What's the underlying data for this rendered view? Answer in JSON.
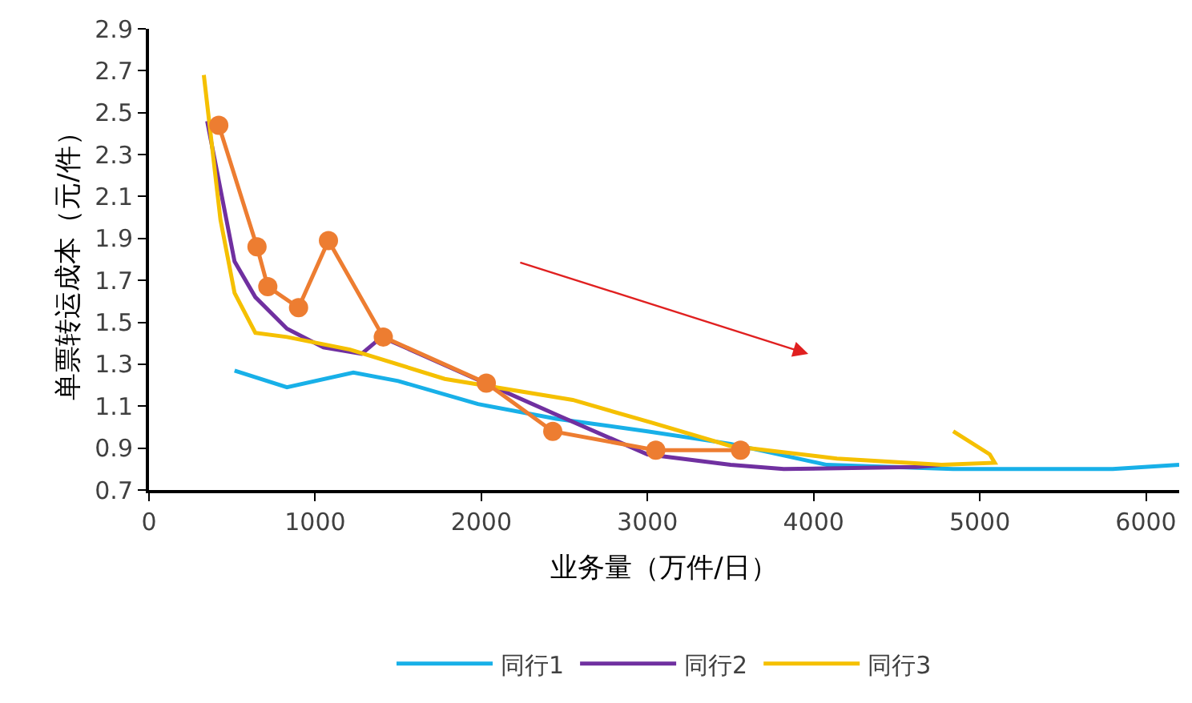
{
  "chart_data": {
    "type": "line",
    "xlabel": "业务量（万件/日）",
    "ylabel": "单票转运成本（元/件）",
    "xlim": [
      0,
      6200
    ],
    "xticks": [
      0,
      1000,
      2000,
      3000,
      4000,
      5000,
      6000
    ],
    "ylim": [
      0.7,
      2.9
    ],
    "yticks": [
      0.7,
      0.9,
      1.1,
      1.3,
      1.5,
      1.7,
      1.9,
      2.1,
      2.3,
      2.5,
      2.7,
      2.9
    ],
    "grid": false,
    "legend": "bottom",
    "line_style": "solid",
    "series": [
      {
        "name": "同行1",
        "color": "#18b0e8",
        "marker": "none",
        "x": [
          515,
          830,
          1230,
          1500,
          1980,
          2450,
          3000,
          3500,
          4080,
          4840,
          5800,
          6200
        ],
        "values": [
          1.27,
          1.19,
          1.26,
          1.22,
          1.11,
          1.04,
          0.98,
          0.92,
          0.82,
          0.8,
          0.8,
          0.82
        ]
      },
      {
        "name": "同行2",
        "color": "#7030a0",
        "marker": "none",
        "x": [
          350,
          515,
          640,
          830,
          1050,
          1280,
          1340,
          1400,
          2450,
          3000,
          3500,
          3820,
          4620,
          4770
        ],
        "values": [
          2.46,
          1.79,
          1.62,
          1.47,
          1.38,
          1.35,
          1.39,
          1.43,
          1.06,
          0.87,
          0.82,
          0.8,
          0.81,
          0.82
        ]
      },
      {
        "name": "同行3",
        "color": "#f5c000",
        "marker": "none",
        "x": [
          330,
          430,
          515,
          640,
          830,
          1210,
          1780,
          2550,
          3030,
          3500,
          4140,
          4770,
          5090,
          5060,
          4840
        ],
        "values": [
          2.68,
          1.99,
          1.64,
          1.45,
          1.43,
          1.37,
          1.23,
          1.13,
          1.02,
          0.91,
          0.85,
          0.82,
          0.83,
          0.87,
          0.98
        ]
      },
      {
        "color": "#ed7d31",
        "marker": "circle",
        "x": [
          420,
          650,
          715,
          900,
          1080,
          1410,
          2030,
          2430,
          3050,
          3560
        ],
        "values": [
          2.44,
          1.86,
          1.67,
          1.57,
          1.89,
          1.43,
          1.21,
          0.98,
          0.89,
          0.89
        ]
      }
    ]
  }
}
